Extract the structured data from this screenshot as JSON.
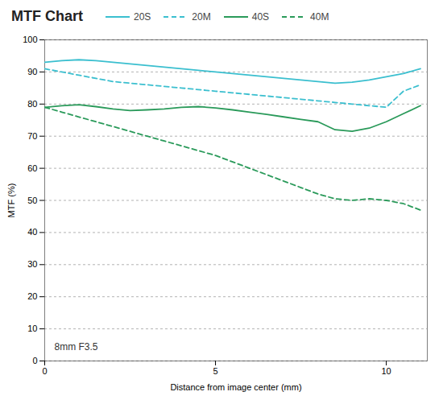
{
  "chart_data": {
    "type": "line",
    "title": "MTF Chart",
    "xlabel": "Distance from image center (mm)",
    "ylabel": "MTF (%)",
    "annotation": "8mm F3.5",
    "xlim": [
      0,
      11.2
    ],
    "ylim": [
      0,
      100
    ],
    "xticks": [
      0,
      5,
      10
    ],
    "yticks": [
      0,
      10,
      20,
      30,
      40,
      50,
      60,
      70,
      80,
      90,
      100
    ],
    "grid": "y",
    "legend": "top",
    "x": [
      0.0,
      0.5,
      1.0,
      1.5,
      2.0,
      2.5,
      3.0,
      3.5,
      4.0,
      4.5,
      5.0,
      5.5,
      6.0,
      6.5,
      7.0,
      7.5,
      8.0,
      8.5,
      9.0,
      9.5,
      10.0,
      10.5,
      11.0
    ],
    "series": [
      {
        "name": "20S",
        "color": "#3bbfcf",
        "line_style": "solid",
        "values": [
          93,
          93.5,
          93.8,
          93.5,
          93.0,
          92.5,
          92.0,
          91.5,
          91.0,
          90.5,
          90.0,
          89.5,
          89.0,
          88.5,
          88.0,
          87.5,
          87.0,
          86.5,
          86.8,
          87.5,
          88.5,
          89.5,
          91.0
        ]
      },
      {
        "name": "20M",
        "color": "#3bbfcf",
        "line_style": "dashed",
        "values": [
          91,
          90,
          89,
          88,
          87,
          86.5,
          86,
          85.5,
          85,
          84.5,
          84,
          83.5,
          83,
          82.5,
          82,
          81.5,
          81,
          80.5,
          80,
          79.5,
          79,
          84,
          86
        ]
      },
      {
        "name": "40S",
        "color": "#2a9a5a",
        "line_style": "solid",
        "values": [
          79,
          79.5,
          79.8,
          79.2,
          78.5,
          78.0,
          78.2,
          78.5,
          79.0,
          79.2,
          78.8,
          78.2,
          77.5,
          76.8,
          76.0,
          75.2,
          74.5,
          72.0,
          71.5,
          72.5,
          74.5,
          77.0,
          79.5
        ]
      },
      {
        "name": "40M",
        "color": "#2a9a5a",
        "line_style": "dashed",
        "values": [
          79,
          77.5,
          76,
          74.5,
          73,
          71.5,
          70,
          68.5,
          67,
          65.5,
          64,
          62,
          60,
          58,
          56,
          54,
          52,
          50.5,
          50,
          50.5,
          50,
          49,
          47
        ]
      }
    ]
  }
}
